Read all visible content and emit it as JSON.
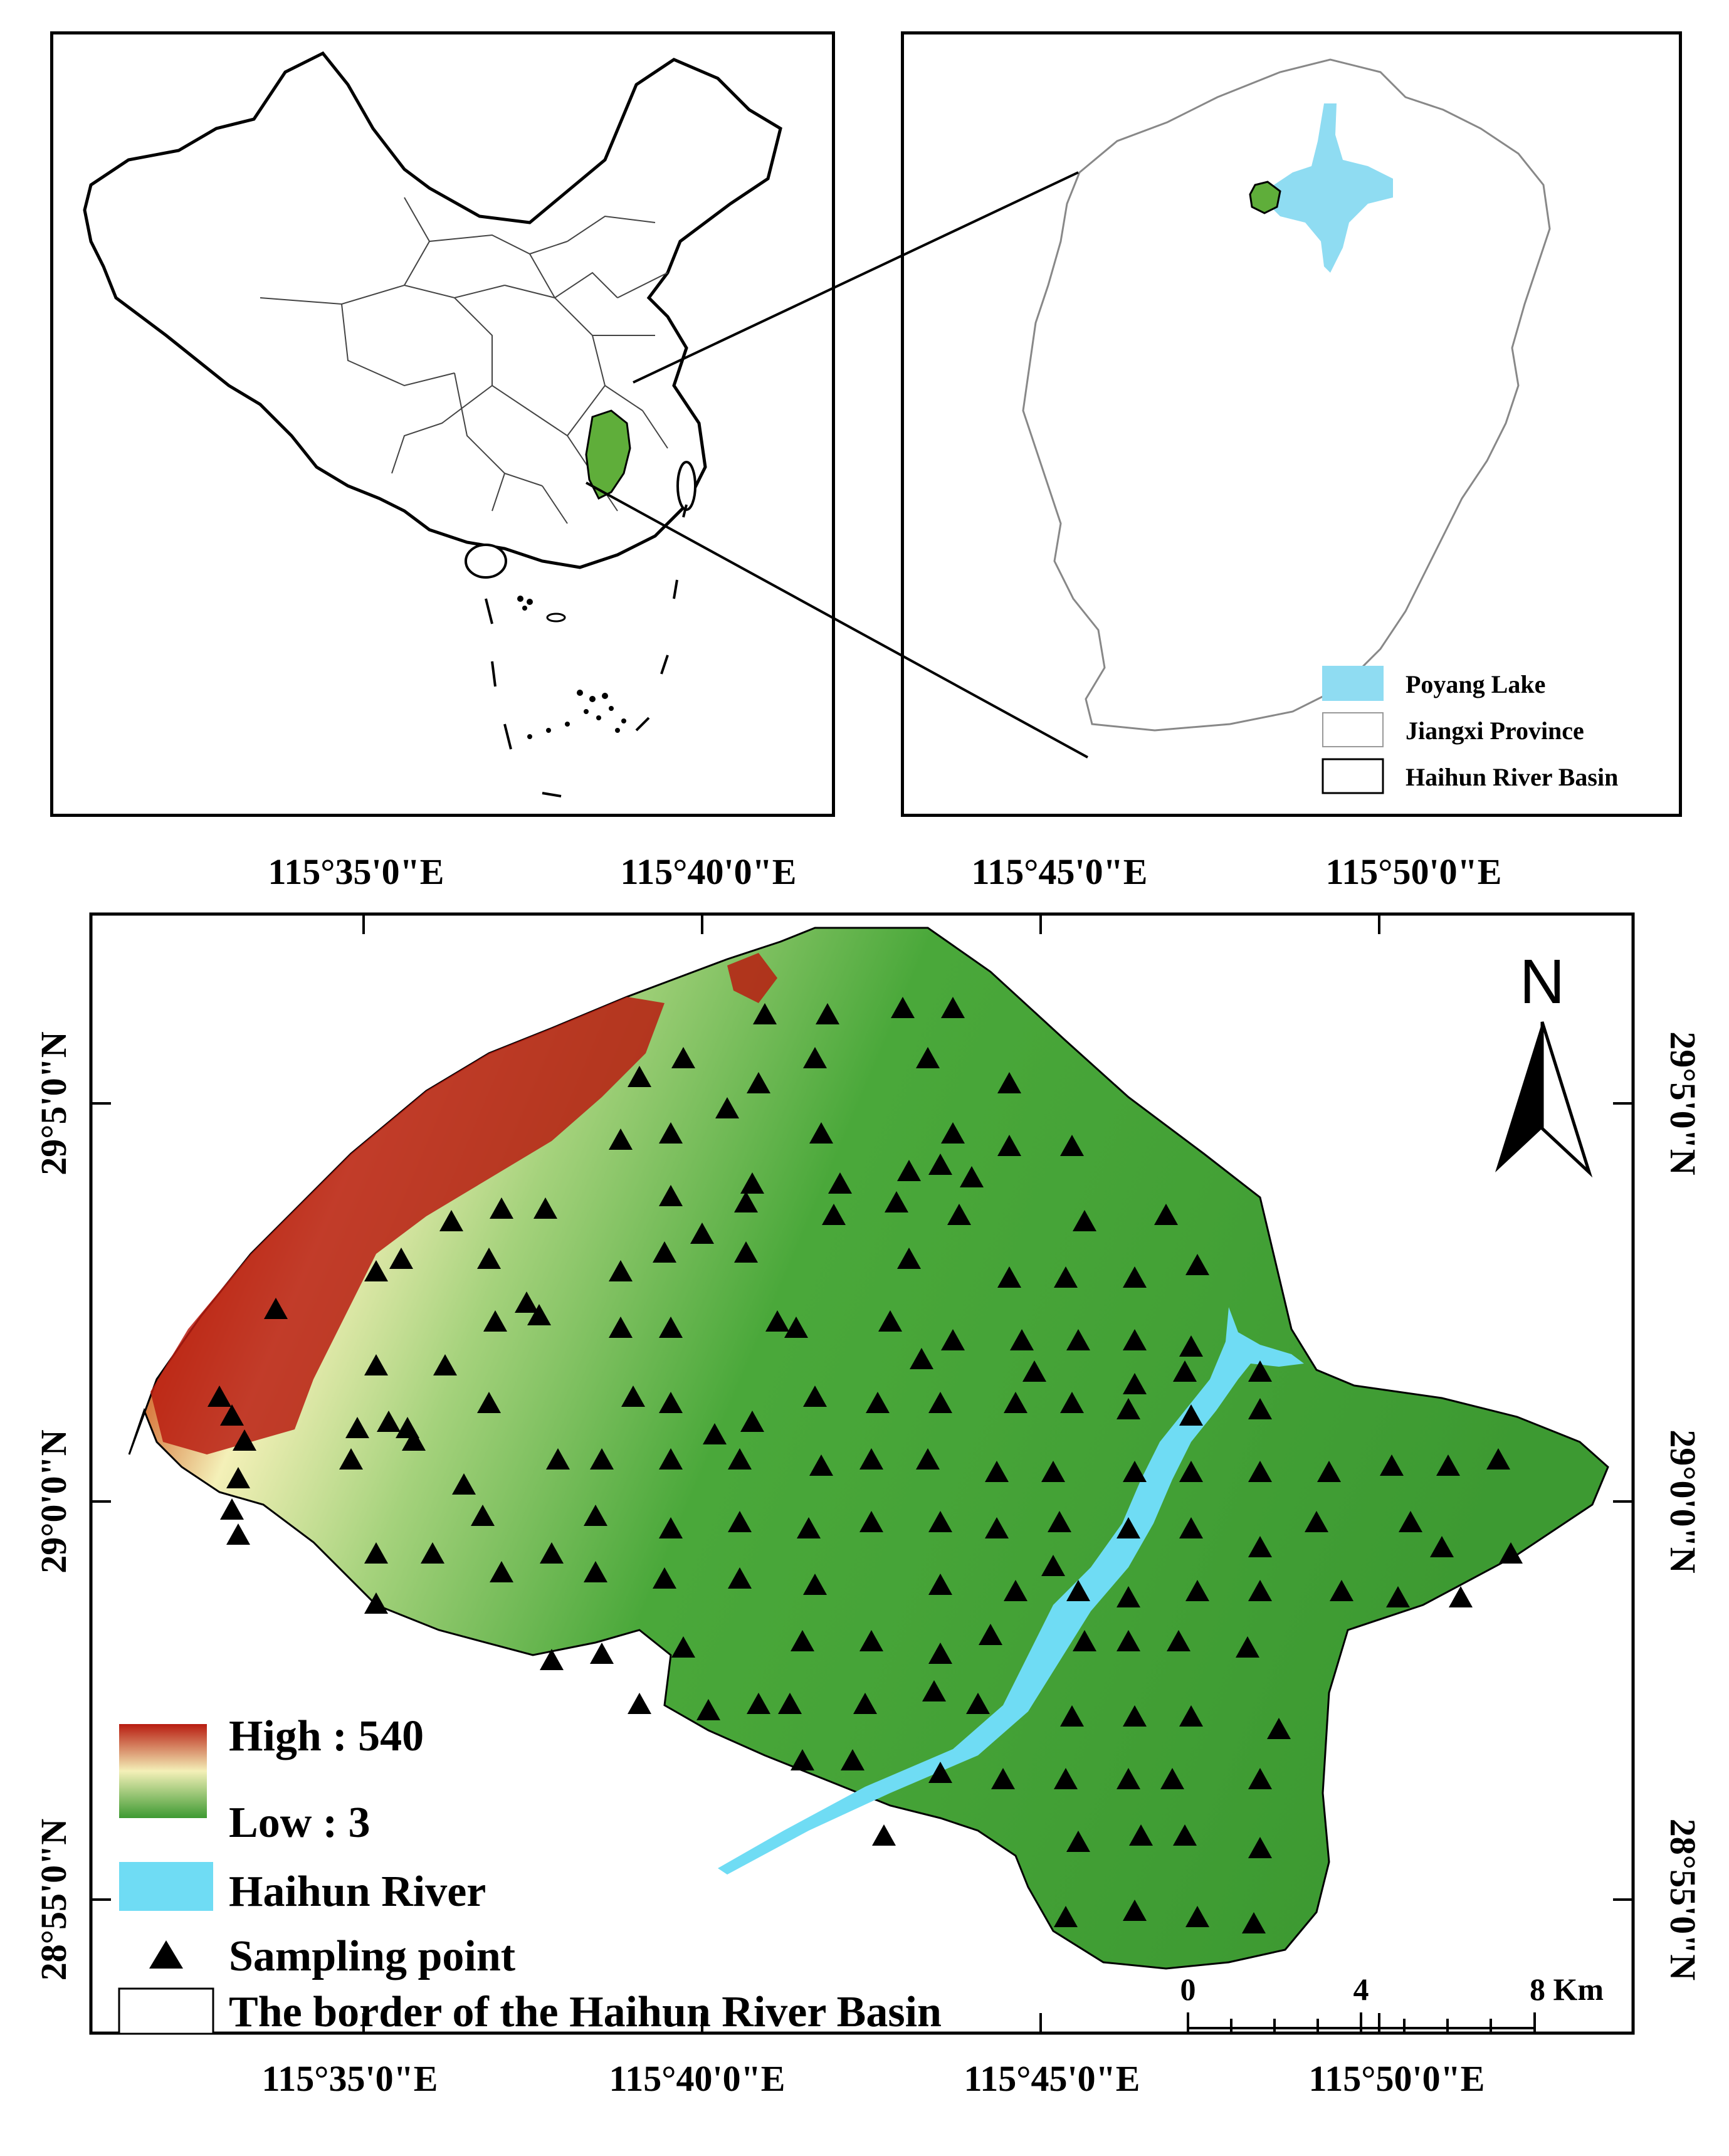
{
  "inset_legend": {
    "items": [
      {
        "label": "Poyang Lake",
        "swatch": "#8fdcf2"
      },
      {
        "label": "Jiangxi Province",
        "swatch": "#ffffff"
      },
      {
        "label": "Haihun River Basin",
        "swatch": "#ffffff"
      }
    ]
  },
  "main_map": {
    "lon_labels_top": [
      "115°35'0\"E",
      "115°40'0\"E",
      "115°45'0\"E",
      "115°50'0\"E"
    ],
    "lon_labels_bottom": [
      "115°35'0\"E",
      "115°40'0\"E",
      "115°45'0\"E",
      "115°50'0\"E"
    ],
    "lat_labels_left": [
      "29°5'0\"N",
      "29°0'0\"N",
      "28°55'0\"N"
    ],
    "lat_labels_right": [
      "29°5'0\"N",
      "29°0'0\"N",
      "28°55'0\"N"
    ],
    "north_label": "N",
    "scale": {
      "ticks": [
        "0",
        "4",
        "8 Km"
      ]
    },
    "legend": {
      "high": "High : 540",
      "low": "Low : 3",
      "river": "Haihun River",
      "sampling": "Sampling point",
      "border": "The border of the Haihun River Basin"
    }
  },
  "colors": {
    "high": "#b81c10",
    "mid": "#f4f0b8",
    "low": "#3d9a32",
    "river": "#6fdcf4",
    "lake": "#8fdcf2"
  }
}
